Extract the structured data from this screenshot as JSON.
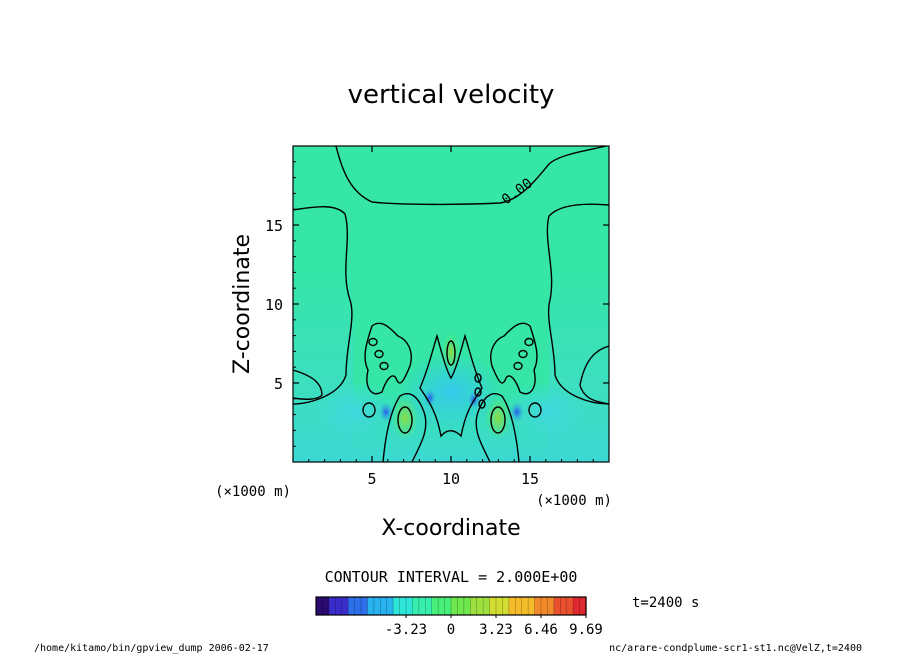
{
  "chart_data": {
    "type": "heatmap",
    "title": "vertical velocity",
    "xlabel": "X-coordinate",
    "ylabel": "Z-coordinate",
    "x_unit": "(×1000 m)",
    "y_unit": "(×1000 m)",
    "xlim": [
      0,
      20
    ],
    "ylim": [
      0,
      20
    ],
    "x_ticks": [
      5,
      10,
      15
    ],
    "y_ticks": [
      5,
      10,
      15
    ],
    "contour_label": "0.00",
    "contour_interval_text": "CONTOUR INTERVAL = 2.000E+00",
    "time_label": "t=2400 s",
    "colorbar": {
      "range": [
        -9.69,
        9.69
      ],
      "tick_labels": [
        "-3.23",
        "0",
        "3.23",
        "6.46",
        "9.69"
      ],
      "tick_values": [
        -3.23,
        0,
        3.23,
        6.46,
        9.69
      ],
      "colors": [
        "#2a0a6e",
        "#3a2cc8",
        "#2d6fe8",
        "#28b2ee",
        "#2ee6d8",
        "#38eeae",
        "#48f07a",
        "#6ee84c",
        "#9ee03e",
        "#d2dc32",
        "#f4bc2a",
        "#f08a2a",
        "#e8502e",
        "#e02830"
      ]
    },
    "background_color": "#35e6a6"
  },
  "footer": {
    "left": "/home/kitamo/bin/gpview_dump  2006-02-17",
    "right": "nc/arare-condplume-scr1-st1.nc@VelZ,t=2400"
  }
}
